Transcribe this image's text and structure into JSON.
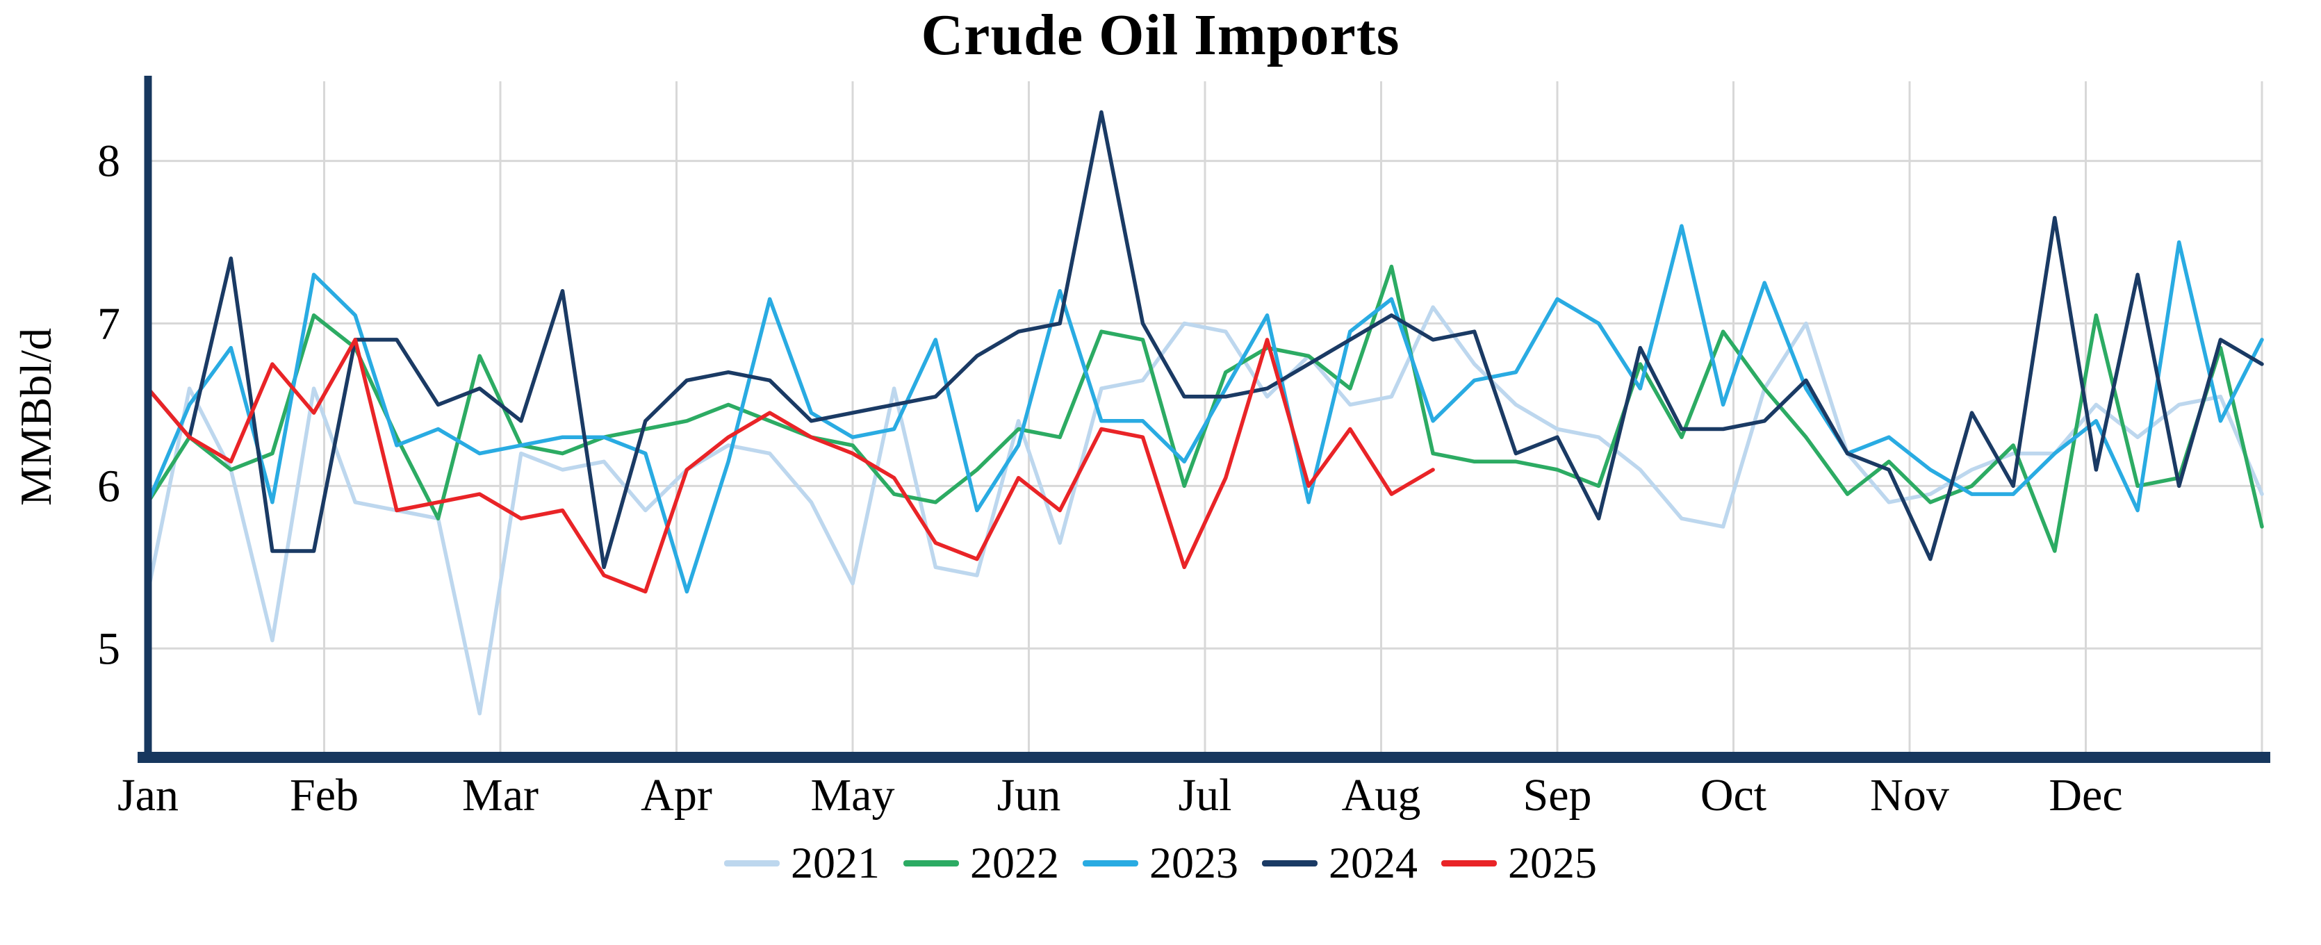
{
  "title": "Crude Oil Imports",
  "ylabel": "MMBbl/d",
  "chart_data": {
    "type": "line",
    "title": "Crude Oil Imports",
    "xlabel": "",
    "ylabel": "MMBbl/d",
    "x_unit": "week-of-year",
    "weeks_per_year": 52,
    "months": [
      "Jan",
      "Feb",
      "Mar",
      "Apr",
      "May",
      "Jun",
      "Jul",
      "Aug",
      "Sep",
      "Oct",
      "Nov",
      "Dec"
    ],
    "yticks": [
      5,
      6,
      7,
      8
    ],
    "ylim": [
      4.33,
      8.49
    ],
    "grid": true,
    "legend_position": "bottom",
    "axis_color": "#17375e",
    "grid_color": "#d8d8d8",
    "series": [
      {
        "name": "2021",
        "color": "#bdd7ee",
        "values": [
          5.35,
          6.6,
          6.1,
          5.05,
          6.6,
          5.9,
          5.85,
          5.8,
          4.6,
          6.2,
          6.1,
          6.15,
          5.85,
          6.1,
          6.25,
          6.2,
          5.9,
          5.4,
          6.6,
          5.5,
          5.45,
          6.4,
          5.65,
          6.6,
          6.65,
          7.0,
          6.95,
          6.55,
          6.8,
          6.5,
          6.55,
          7.1,
          6.75,
          6.5,
          6.35,
          6.3,
          6.1,
          5.8,
          5.75,
          6.6,
          7.0,
          6.2,
          5.9,
          5.95,
          6.1,
          6.2,
          6.2,
          6.5,
          6.3,
          6.5,
          6.55,
          5.95
        ]
      },
      {
        "name": "2022",
        "color": "#2cab63",
        "values": [
          5.9,
          6.3,
          6.1,
          6.2,
          7.05,
          6.85,
          6.3,
          5.8,
          6.8,
          6.25,
          6.2,
          6.3,
          6.35,
          6.4,
          6.5,
          6.4,
          6.3,
          6.25,
          5.95,
          5.9,
          6.1,
          6.35,
          6.3,
          6.95,
          6.9,
          6.0,
          6.7,
          6.85,
          6.8,
          6.6,
          7.35,
          6.2,
          6.15,
          6.15,
          6.1,
          6.0,
          6.75,
          6.3,
          6.95,
          6.6,
          6.3,
          5.95,
          6.15,
          5.9,
          6.0,
          6.25,
          5.6,
          7.05,
          6.0,
          6.05,
          6.85,
          5.75
        ]
      },
      {
        "name": "2023",
        "color": "#29abe2",
        "values": [
          5.9,
          6.5,
          6.85,
          5.9,
          7.3,
          7.05,
          6.25,
          6.35,
          6.2,
          6.25,
          6.3,
          6.3,
          6.2,
          5.35,
          6.15,
          7.15,
          6.45,
          6.3,
          6.35,
          6.9,
          5.85,
          6.25,
          7.2,
          6.4,
          6.4,
          6.15,
          6.6,
          7.05,
          5.9,
          6.95,
          7.15,
          6.4,
          6.65,
          6.7,
          7.15,
          7.0,
          6.6,
          7.6,
          6.5,
          7.25,
          6.6,
          6.2,
          6.3,
          6.1,
          5.95,
          5.95,
          6.2,
          6.4,
          5.85,
          7.5,
          6.4,
          6.9
        ]
      },
      {
        "name": "2024",
        "color": "#1a3a64",
        "values": [
          6.6,
          6.3,
          7.4,
          5.6,
          5.6,
          6.9,
          6.9,
          6.5,
          6.6,
          6.4,
          7.2,
          5.5,
          6.4,
          6.65,
          6.7,
          6.65,
          6.4,
          6.45,
          6.5,
          6.55,
          6.8,
          6.95,
          7.0,
          8.3,
          7.0,
          6.55,
          6.55,
          6.6,
          6.75,
          6.9,
          7.05,
          6.9,
          6.95,
          6.2,
          6.3,
          5.8,
          6.85,
          6.35,
          6.35,
          6.4,
          6.65,
          6.2,
          6.1,
          5.55,
          6.45,
          6.0,
          7.65,
          6.1,
          7.3,
          6.0,
          6.9,
          6.75
        ]
      },
      {
        "name": "2025",
        "color": "#e92427",
        "values": [
          6.6,
          6.3,
          6.15,
          6.75,
          6.45,
          6.9,
          5.85,
          5.9,
          5.95,
          5.8,
          5.85,
          5.45,
          5.35,
          6.1,
          6.3,
          6.45,
          6.3,
          6.2,
          6.05,
          5.65,
          5.55,
          6.05,
          5.85,
          6.35,
          6.3,
          5.5,
          6.05,
          6.9,
          6.0,
          6.35,
          5.95,
          6.1
        ]
      }
    ]
  }
}
